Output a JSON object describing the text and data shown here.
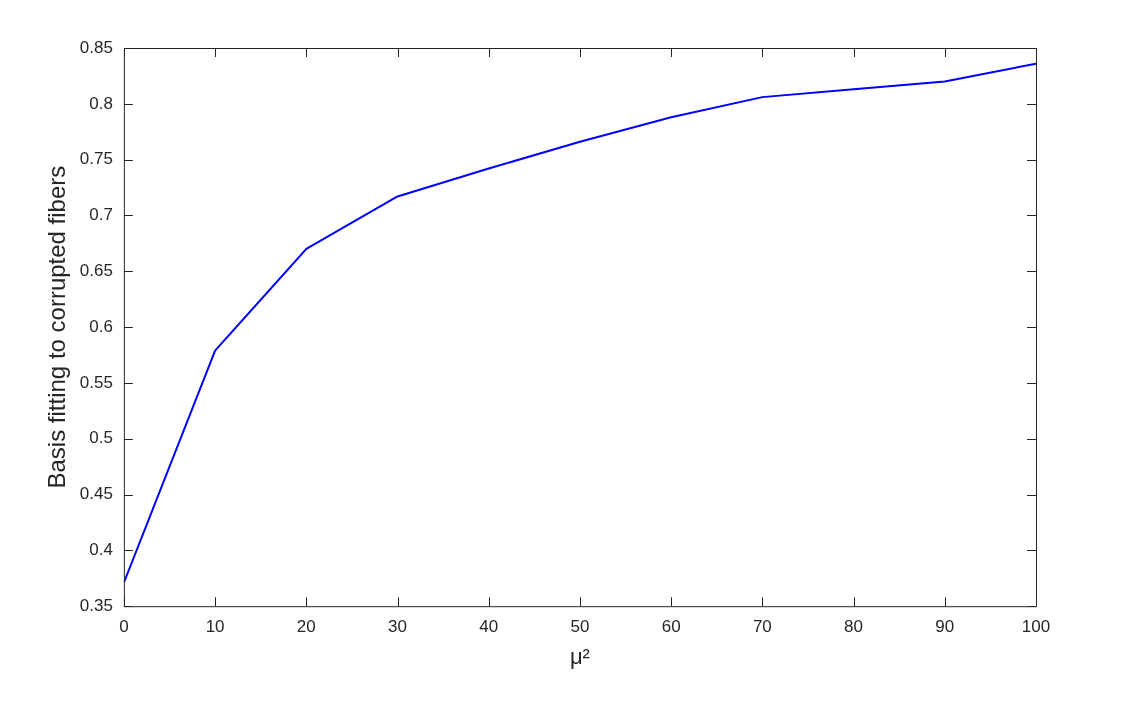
{
  "chart_data": {
    "type": "line",
    "xlabel": "μ²",
    "ylabel": "Basis fitting to corrupted fibers",
    "x": [
      0,
      10,
      20,
      30,
      40,
      50,
      60,
      70,
      80,
      90,
      100
    ],
    "series": [
      {
        "color": "#0000ff",
        "values": [
          0.371,
          0.579,
          0.67,
          0.717,
          0.742,
          0.766,
          0.788,
          0.806,
          0.813,
          0.82,
          0.836
        ]
      }
    ],
    "xlim": [
      0,
      100
    ],
    "ylim": [
      0.35,
      0.85
    ],
    "xticks": [
      0,
      10,
      20,
      30,
      40,
      50,
      60,
      70,
      80,
      90,
      100
    ],
    "yticks": [
      0.35,
      0.4,
      0.45,
      0.5,
      0.55,
      0.6,
      0.65,
      0.7,
      0.75,
      0.8,
      0.85
    ]
  }
}
